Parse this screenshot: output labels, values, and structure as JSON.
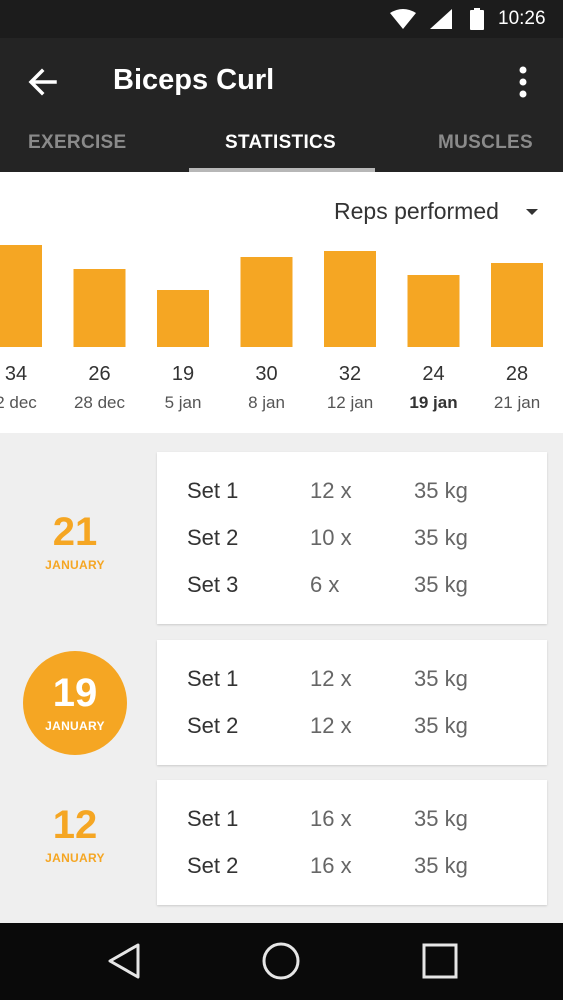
{
  "status_bar": {
    "time": "10:26",
    "icons": [
      "wifi-icon",
      "signal-icon",
      "battery-icon"
    ]
  },
  "app_bar": {
    "title": "Biceps Curl",
    "back_icon": "arrow-back-icon",
    "more_icon": "more-vert-icon"
  },
  "tabs": [
    {
      "label": "EXERCISE",
      "active": false
    },
    {
      "label": "STATISTICS",
      "active": true
    },
    {
      "label": "MUSCLES",
      "active": false
    }
  ],
  "metric_selector": {
    "value": "Reps performed",
    "icon": "dropdown-caret-icon"
  },
  "chart_data": {
    "type": "bar",
    "categories": [
      "2 dec",
      "28 dec",
      "5 jan",
      "8 jan",
      "12 jan",
      "19 jan",
      "21 jan"
    ],
    "values": [
      34,
      26,
      19,
      30,
      32,
      24,
      28
    ],
    "highlighted_category": "19 jan",
    "bar_color": "#f5a623",
    "title": "",
    "xlabel": "",
    "ylabel": "",
    "grid": false
  },
  "history": [
    {
      "day": "21",
      "month": "JANUARY",
      "selected": false,
      "sets": [
        {
          "label": "Set 1",
          "reps": "12 x",
          "weight": "35 kg"
        },
        {
          "label": "Set 2",
          "reps": "10 x",
          "weight": "35 kg"
        },
        {
          "label": "Set 3",
          "reps": "6 x",
          "weight": "35 kg"
        }
      ]
    },
    {
      "day": "19",
      "month": "JANUARY",
      "selected": true,
      "sets": [
        {
          "label": "Set 1",
          "reps": "12 x",
          "weight": "35 kg"
        },
        {
          "label": "Set 2",
          "reps": "12 x",
          "weight": "35 kg"
        }
      ]
    },
    {
      "day": "12",
      "month": "JANUARY",
      "selected": false,
      "sets": [
        {
          "label": "Set 1",
          "reps": "16 x",
          "weight": "35 kg"
        },
        {
          "label": "Set 2",
          "reps": "16 x",
          "weight": "35 kg"
        }
      ]
    }
  ],
  "nav_bar": {
    "icons": [
      "back-triangle-icon",
      "home-circle-icon",
      "recents-square-icon"
    ]
  },
  "colors": {
    "accent": "#f5a623",
    "app_bar": "#242424",
    "status_bar": "#1c1c1c",
    "background": "#efefef"
  }
}
